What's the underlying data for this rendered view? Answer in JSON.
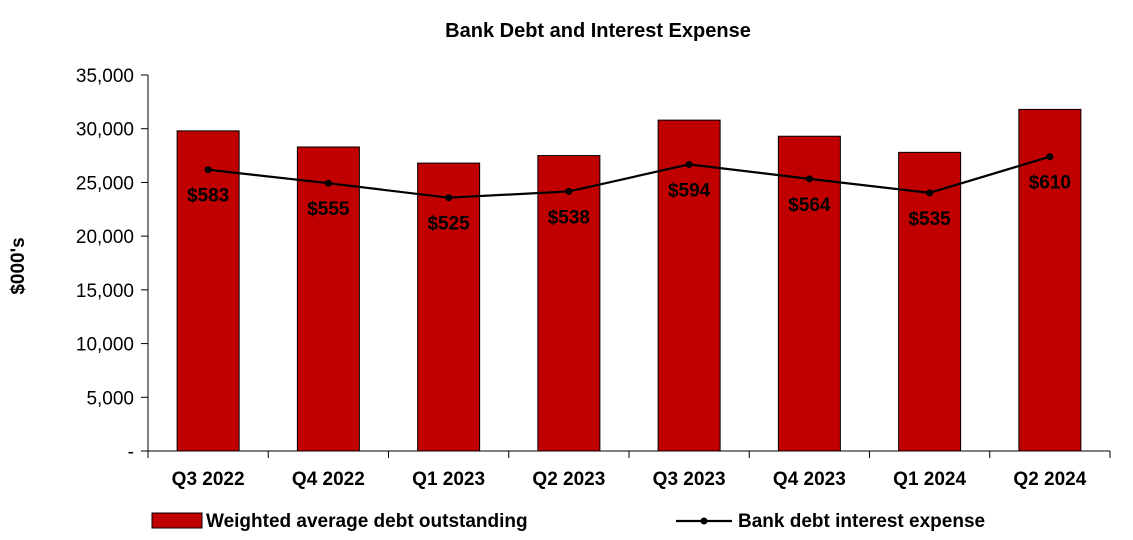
{
  "chart_data": {
    "type": "bar",
    "title": "Bank Debt and Interest Expense",
    "ylabel": "$000's",
    "ylim": [
      0,
      35000
    ],
    "yticks": [
      0,
      5000,
      10000,
      15000,
      20000,
      25000,
      30000,
      35000
    ],
    "ytick_labels": [
      "-",
      "5,000",
      "10,000",
      "15,000",
      "20,000",
      "25,000",
      "30,000",
      "35,000"
    ],
    "categories": [
      "Q3 2022",
      "Q4 2022",
      "Q1 2023",
      "Q2 2023",
      "Q3 2023",
      "Q4 2023",
      "Q1 2024",
      "Q2 2024"
    ],
    "series": [
      {
        "name": "Weighted average debt outstanding",
        "type": "bar",
        "color": "#c00000",
        "values": [
          29800,
          28300,
          26800,
          27500,
          30800,
          29300,
          27800,
          31800
        ]
      },
      {
        "name": "Bank debt interest expense",
        "type": "line",
        "color": "#000000",
        "values": [
          583,
          555,
          525,
          538,
          594,
          564,
          535,
          610
        ],
        "labels": [
          "$583",
          "$555",
          "$525",
          "$538",
          "$594",
          "$564",
          "$535",
          "$610"
        ]
      }
    ],
    "grid": false,
    "legend": "bottom"
  }
}
